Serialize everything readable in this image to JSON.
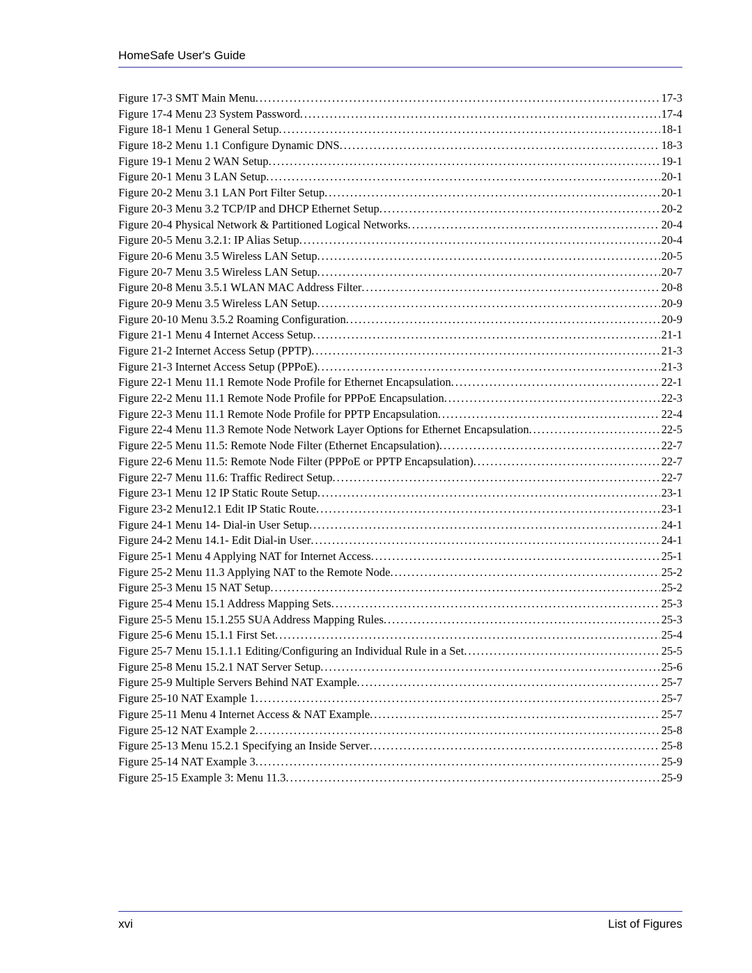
{
  "header": {
    "title": "HomeSafe User's Guide"
  },
  "entries": [
    {
      "title": "Figure 17-3 SMT Main Menu ",
      "page": " 17-3"
    },
    {
      "title": "Figure 17-4 Menu 23 System Password ",
      "page": " 17-4"
    },
    {
      "title": "Figure 18-1 Menu 1 General Setup ",
      "page": " 18-1"
    },
    {
      "title": "Figure 18-2 Menu 1.1 Configure Dynamic DNS ",
      "page": " 18-3"
    },
    {
      "title": "Figure 19-1 Menu 2 WAN Setup ",
      "page": " 19-1"
    },
    {
      "title": "Figure 20-1 Menu 3 LAN Setup",
      "page": " 20-1"
    },
    {
      "title": "Figure 20-2 Menu 3.1 LAN Port Filter Setup",
      "page": " 20-1"
    },
    {
      "title": "Figure 20-3 Menu 3.2 TCP/IP and DHCP Ethernet Setup",
      "page": " 20-2"
    },
    {
      "title": "Figure 20-4 Physical Network & Partitioned Logical Networks",
      "page": " 20-4"
    },
    {
      "title": "Figure 20-5 Menu 3.2.1: IP Alias Setup ",
      "page": " 20-4"
    },
    {
      "title": "Figure 20-6 Menu 3.5 Wireless LAN Setup ",
      "page": " 20-5"
    },
    {
      "title": "Figure 20-7 Menu 3.5 Wireless LAN Setup ",
      "page": " 20-7"
    },
    {
      "title": "Figure 20-8 Menu 3.5.1 WLAN MAC Address Filter",
      "page": " 20-8"
    },
    {
      "title": "Figure 20-9 Menu 3.5 Wireless LAN Setup ",
      "page": " 20-9"
    },
    {
      "title": "Figure 20-10 Menu 3.5.2 Roaming Configuration ",
      "page": " 20-9"
    },
    {
      "title": "Figure 21-1 Menu 4 Internet Access Setup",
      "page": " 21-1"
    },
    {
      "title": "Figure 21-2 Internet Access Setup (PPTP) ",
      "page": " 21-3"
    },
    {
      "title": "Figure 21-3 Internet Access Setup (PPPoE) ",
      "page": " 21-3"
    },
    {
      "title": "Figure 22-1 Menu 11.1 Remote Node Profile for Ethernet Encapsulation ",
      "page": " 22-1"
    },
    {
      "title": "Figure 22-2 Menu 11.1 Remote Node Profile for PPPoE Encapsulation ",
      "page": " 22-3"
    },
    {
      "title": "Figure 22-3 Menu 11.1 Remote Node Profile for PPTP Encapsulation ",
      "page": " 22-4"
    },
    {
      "title": "Figure 22-4 Menu 11.3 Remote Node Network Layer Options for Ethernet Encapsulation ",
      "page": " 22-5"
    },
    {
      "title": "Figure 22-5 Menu 11.5: Remote Node Filter (Ethernet Encapsulation) ",
      "page": " 22-7"
    },
    {
      "title": "Figure 22-6 Menu 11.5: Remote Node Filter (PPPoE or PPTP Encapsulation) ",
      "page": " 22-7"
    },
    {
      "title": "Figure 22-7 Menu 11.6: Traffic Redirect Setup",
      "page": " 22-7"
    },
    {
      "title": "Figure 23-1 Menu 12 IP Static Route Setup ",
      "page": " 23-1"
    },
    {
      "title": "Figure 23-2 Menu12.1 Edit IP Static Route",
      "page": " 23-1"
    },
    {
      "title": "Figure 24-1 Menu 14- Dial-in User Setup",
      "page": " 24-1"
    },
    {
      "title": "Figure 24-2 Menu 14.1- Edit Dial-in User ",
      "page": " 24-1"
    },
    {
      "title": "Figure 25-1 Menu 4 Applying NAT for Internet Access",
      "page": " 25-1"
    },
    {
      "title": "Figure 25-2 Menu 11.3 Applying NAT to the Remote Node ",
      "page": " 25-2"
    },
    {
      "title": "Figure 25-3 Menu 15 NAT Setup ",
      "page": " 25-2"
    },
    {
      "title": "Figure 25-4 Menu 15.1 Address Mapping Sets ",
      "page": " 25-3"
    },
    {
      "title": "Figure 25-5 Menu 15.1.255 SUA Address Mapping Rules ",
      "page": " 25-3"
    },
    {
      "title": "Figure 25-6 Menu 15.1.1 First Set",
      "page": " 25-4"
    },
    {
      "title": "Figure 25-7 Menu 15.1.1.1 Editing/Configuring an Individual Rule in a Set ",
      "page": " 25-5"
    },
    {
      "title": "Figure 25-8 Menu 15.2.1 NAT Server Setup ",
      "page": " 25-6"
    },
    {
      "title": "Figure 25-9 Multiple Servers Behind NAT Example ",
      "page": " 25-7"
    },
    {
      "title": "Figure 25-10 NAT Example 1 ",
      "page": " 25-7"
    },
    {
      "title": "Figure 25-11 Menu 4 Internet Access & NAT Example ",
      "page": " 25-7"
    },
    {
      "title": "Figure 25-12 NAT Example 2 ",
      "page": " 25-8"
    },
    {
      "title": "Figure 25-13 Menu 15.2.1 Specifying an Inside Server ",
      "page": " 25-8"
    },
    {
      "title": "Figure 25-14 NAT Example 3 ",
      "page": " 25-9"
    },
    {
      "title": "Figure 25-15 Example 3: Menu 11.3",
      "page": " 25-9"
    }
  ],
  "footer": {
    "page_num": "xvi",
    "section": "List of Figures"
  }
}
